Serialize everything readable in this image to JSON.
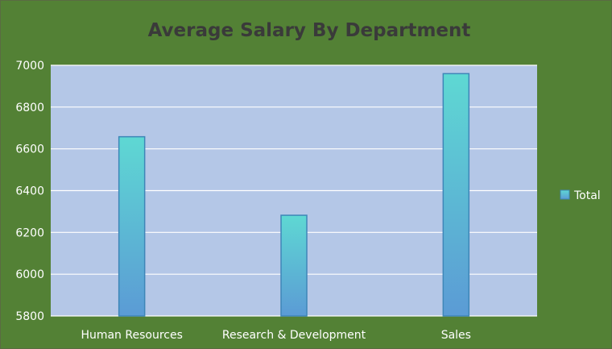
{
  "chart_data": {
    "type": "bar",
    "title": "Average Salary By Department",
    "xlabel": "",
    "ylabel": "",
    "categories": [
      "Human Resources",
      "Research & Development",
      "Sales"
    ],
    "series": [
      {
        "name": "Total",
        "values": [
          6658,
          6282,
          6960
        ]
      }
    ],
    "ylim": [
      5800,
      7000
    ],
    "yticks": [
      5800,
      6000,
      6200,
      6400,
      6600,
      6800,
      7000
    ],
    "grid": true,
    "legend_position": "right"
  },
  "colors": {
    "frame_background": "#538135",
    "plot_background": "#b4c7e7",
    "gridline": "#ffffff",
    "bar_top": "#5ed8d3",
    "bar_bottom": "#5b9bd5",
    "bar_border": "#3e86b8",
    "title": "#3a3a3a",
    "labels": "#ffffff"
  }
}
